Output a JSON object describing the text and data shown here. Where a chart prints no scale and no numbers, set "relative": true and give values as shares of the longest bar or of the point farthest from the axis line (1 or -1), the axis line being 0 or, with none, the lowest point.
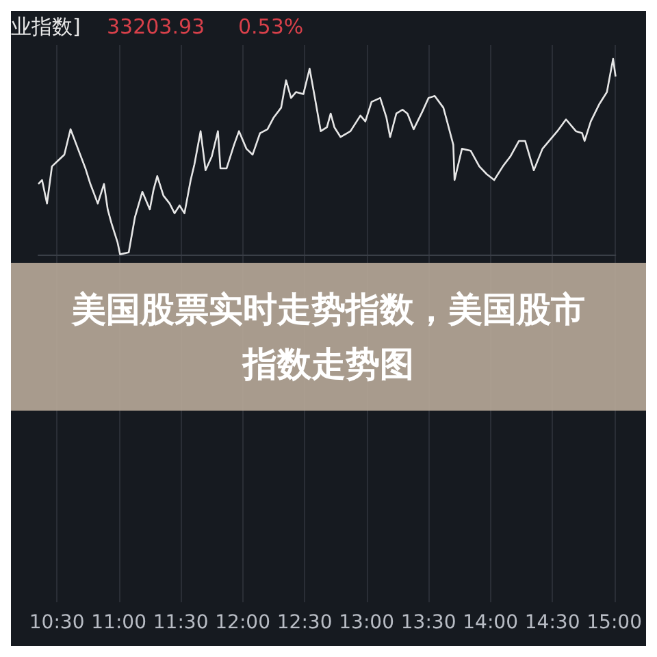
{
  "chart_data": {
    "type": "line",
    "title": "美国股票实时走势指数，美国股市指数走势图",
    "annotations": [
      "业指数]",
      "33203.93",
      "0.53%"
    ],
    "relative": true,
    "grid": "x",
    "marker": "none",
    "line_style": "solid",
    "xlim": [
      10.35,
      15.01
    ],
    "xticks": [
      {
        "value": 10.5,
        "label": "10:30"
      },
      {
        "value": 11,
        "label": "11:00"
      },
      {
        "value": 11.5,
        "label": "11:30"
      },
      {
        "value": 12,
        "label": "12:00"
      },
      {
        "value": 12.5,
        "label": "12:30"
      },
      {
        "value": 13,
        "label": "13:00"
      },
      {
        "value": 13.5,
        "label": "13:30"
      },
      {
        "value": 14,
        "label": "14:00"
      },
      {
        "value": 14.5,
        "label": "14:30"
      },
      {
        "value": 15,
        "label": "15:00"
      }
    ],
    "series": [
      {
        "color": "#e6e6e6",
        "x": [
          10.35,
          10.38,
          10.42,
          10.46,
          10.51,
          10.56,
          10.61,
          10.67,
          10.73,
          10.77,
          10.83,
          10.88,
          10.91,
          10.94,
          10.99,
          11.01,
          11.08,
          11.13,
          11.19,
          11.25,
          11.28,
          11.31,
          11.36,
          11.41,
          11.45,
          11.49,
          11.53,
          11.58,
          11.61,
          11.66,
          11.7,
          11.75,
          11.8,
          11.82,
          11.87,
          11.93,
          11.97,
          12.03,
          12.08,
          12.14,
          12.2,
          12.25,
          12.31,
          12.35,
          12.39,
          12.43,
          12.49,
          12.54,
          12.58,
          12.63,
          12.68,
          12.71,
          12.74,
          12.79,
          12.87,
          12.95,
          12.99,
          13.04,
          13.11,
          13.16,
          13.19,
          13.24,
          13.29,
          13.33,
          13.38,
          13.45,
          13.5,
          13.55,
          13.62,
          13.65,
          13.7,
          13.71,
          13.77,
          13.84,
          13.91,
          13.97,
          14.03,
          14.1,
          14.16,
          14.23,
          14.28,
          14.35,
          14.42,
          14.54,
          14.61,
          14.69,
          14.74,
          14.76,
          14.81,
          14.88,
          14.94,
          14.99,
          15.01
        ],
        "values": [
          0.36,
          0.38,
          0.26,
          0.45,
          0.48,
          0.51,
          0.64,
          0.54,
          0.44,
          0.36,
          0.26,
          0.36,
          0.23,
          0.16,
          0.06,
          0,
          0.01,
          0.19,
          0.32,
          0.23,
          0.33,
          0.4,
          0.3,
          0.26,
          0.21,
          0.25,
          0.21,
          0.38,
          0.46,
          0.63,
          0.43,
          0.5,
          0.63,
          0.44,
          0.44,
          0.56,
          0.63,
          0.54,
          0.51,
          0.62,
          0.64,
          0.7,
          0.75,
          0.89,
          0.8,
          0.83,
          0.82,
          0.95,
          0.81,
          0.63,
          0.65,
          0.72,
          0.65,
          0.6,
          0.63,
          0.71,
          0.68,
          0.78,
          0.8,
          0.7,
          0.6,
          0.72,
          0.74,
          0.72,
          0.64,
          0.73,
          0.8,
          0.81,
          0.75,
          0.68,
          0.56,
          0.38,
          0.54,
          0.53,
          0.45,
          0.41,
          0.38,
          0.45,
          0.5,
          0.58,
          0.58,
          0.43,
          0.54,
          0.63,
          0.69,
          0.63,
          0.62,
          0.58,
          0.68,
          0.77,
          0.83,
          1,
          0.91
        ]
      }
    ]
  }
}
